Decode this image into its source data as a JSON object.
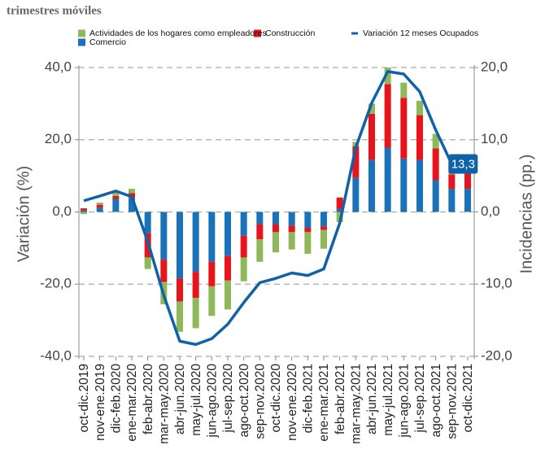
{
  "chart_data": {
    "type": "bar_line",
    "subtitle": "trimestres móviles",
    "y_label": "Variación (%)",
    "y2_label": "Incidencias (pp.)",
    "categories": [
      "oct-dic.2019",
      "nov-ene.2019",
      "dic-feb.2020",
      "ene-mar.2020",
      "feb-abr.2020",
      "mar-may.2020",
      "abr-jun.2020",
      "may-jul.2020",
      "jun-ago.2020",
      "jul-sep.2020",
      "ago-oct.2020",
      "sep-nov.2020",
      "oct-dic.2020",
      "nov-ene.2020",
      "dic-feb.2021",
      "ene-mar.2021",
      "feb-abr.2021",
      "mar-may.2021",
      "abr-jun.2021",
      "may-jul.2021",
      "jun-ago.2021",
      "jul-sep.2021",
      "ago-oct.2021",
      "sep-nov.2021",
      "oct-dic.2021"
    ],
    "ylim": [
      -40,
      40
    ],
    "yticks": [
      {
        "value": 40,
        "label": "40,0"
      },
      {
        "value": 20,
        "label": "20,0"
      },
      {
        "value": 0,
        "label": "0,0"
      },
      {
        "value": -20,
        "label": "-20,0"
      },
      {
        "value": -40,
        "label": "-40,0"
      }
    ],
    "y2lim": [
      -20,
      20
    ],
    "y2ticks": [
      {
        "value": 20,
        "label": "20,0"
      },
      {
        "value": 10,
        "label": "10,0"
      },
      {
        "value": 0,
        "label": "0,0"
      },
      {
        "value": -10,
        "label": "-10,0"
      },
      {
        "value": -20,
        "label": "-20,0"
      }
    ],
    "grid": true,
    "series": [
      {
        "name": "Comercio",
        "color": "#1a72b8",
        "type": "bar",
        "axis": "y2",
        "values": [
          0.2,
          0.6,
          1.8,
          1.9,
          -2.9,
          -6.6,
          -9.2,
          -8.3,
          -6.9,
          -6.1,
          -3.3,
          -1.7,
          -1.7,
          -1.9,
          -2.2,
          -2.0,
          0.4,
          4.7,
          7.2,
          8.9,
          7.4,
          7.2,
          4.4,
          3.2,
          3.2
        ]
      },
      {
        "name": "Construcción",
        "color": "#e8141c",
        "type": "bar",
        "axis": "y2",
        "values": [
          0.3,
          0.4,
          0.4,
          0.7,
          -3.4,
          -3.1,
          -3.2,
          -3.6,
          -3.4,
          -3.4,
          -3.0,
          -2.1,
          -1.1,
          -0.9,
          -0.6,
          -0.5,
          1.6,
          4.4,
          6.4,
          8.8,
          8.4,
          6.2,
          4.4,
          2.0,
          2.1
        ]
      },
      {
        "name": "Actividades de los hogares como empleadores",
        "color": "#8fb85a",
        "type": "bar",
        "axis": "y2",
        "values": [
          -0.3,
          0.3,
          0.5,
          0.6,
          -1.6,
          -3.1,
          -4.2,
          -4.2,
          -4.1,
          -4.0,
          -3.3,
          -3.1,
          -2.8,
          -2.4,
          -3.0,
          -2.6,
          -1.4,
          0.6,
          1.4,
          2.3,
          2.1,
          2.0,
          2.0,
          1.5,
          0.0
        ]
      },
      {
        "name": "Variación 12 meses Ocupados",
        "color": "#0f62a8",
        "type": "line",
        "values": [
          3.1,
          4.4,
          5.8,
          4.2,
          -8.2,
          -23.1,
          -35.8,
          -36.7,
          -35.1,
          -31.1,
          -25.1,
          -19.6,
          -18.4,
          -16.9,
          -17.6,
          -15.8,
          -3.1,
          17.8,
          30.2,
          38.9,
          38.2,
          33.3,
          22.7,
          13.3,
          null
        ],
        "value_labels": [
          null,
          null,
          null,
          null,
          null,
          null,
          null,
          null,
          null,
          null,
          null,
          null,
          null,
          null,
          null,
          null,
          null,
          null,
          null,
          null,
          null,
          null,
          null,
          "13,3",
          null
        ]
      }
    ]
  }
}
